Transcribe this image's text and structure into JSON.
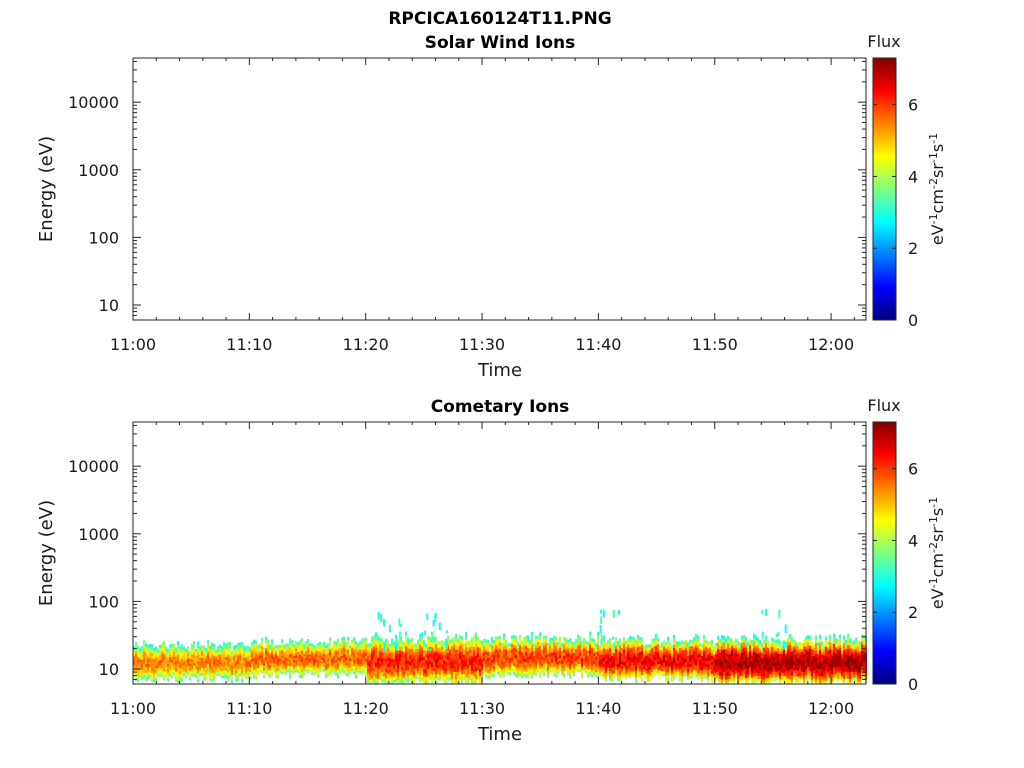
{
  "figure": {
    "title": "RPCICA160124T11.PNG"
  },
  "chart_data": [
    {
      "type": "heatmap",
      "title": "Solar Wind Ions",
      "xlabel": "Time",
      "ylabel": "Energy (eV)",
      "x_ticks": [
        "11:00",
        "11:10",
        "11:20",
        "11:30",
        "11:40",
        "11:50",
        "12:00"
      ],
      "xlim": [
        "11:00",
        "12:03"
      ],
      "y_ticks": [
        "10",
        "100",
        "1000",
        "10000"
      ],
      "ylim": [
        6,
        45000
      ],
      "y_scale": "log",
      "colorbar": {
        "title": "Flux",
        "label": "eV⁻¹cm⁻²sr⁻¹s⁻¹",
        "ticks": [
          "0",
          "2",
          "4",
          "6"
        ],
        "range": [
          0,
          7.3
        ],
        "colormap": "jet"
      },
      "bands": []
    },
    {
      "type": "heatmap",
      "title": "Cometary Ions",
      "xlabel": "Time",
      "ylabel": "Energy (eV)",
      "x_ticks": [
        "11:00",
        "11:10",
        "11:20",
        "11:30",
        "11:40",
        "11:50",
        "12:00"
      ],
      "xlim": [
        "11:00",
        "12:03"
      ],
      "y_ticks": [
        "10",
        "100",
        "1000",
        "10000"
      ],
      "ylim": [
        6,
        45000
      ],
      "y_scale": "log",
      "colorbar": {
        "title": "Flux",
        "label": "eV⁻¹cm⁻²sr⁻¹s⁻¹",
        "ticks": [
          "0",
          "2",
          "4",
          "6"
        ],
        "range": [
          0,
          7.3
        ],
        "colormap": "jet"
      },
      "bands": [
        {
          "t_start": "11:00",
          "t_end": "11:10",
          "e_low": 7,
          "e_high": 25,
          "peak_flux": 5.5
        },
        {
          "t_start": "11:10",
          "t_end": "11:20",
          "e_low": 8,
          "e_high": 28,
          "peak_flux": 5.7
        },
        {
          "t_start": "11:20",
          "t_end": "11:30",
          "e_low": 6,
          "e_high": 30,
          "peak_flux": 6.2
        },
        {
          "t_start": "11:30",
          "t_end": "11:40",
          "e_low": 8,
          "e_high": 30,
          "peak_flux": 6.0
        },
        {
          "t_start": "11:40",
          "t_end": "11:50",
          "e_low": 7,
          "e_high": 28,
          "peak_flux": 6.5
        },
        {
          "t_start": "11:50",
          "t_end": "12:03",
          "e_low": 6,
          "e_high": 28,
          "peak_flux": 7.0
        }
      ],
      "sparse_bursts": [
        {
          "t": "11:22",
          "e_low": 20,
          "e_high": 80,
          "flux": 3.0
        },
        {
          "t": "11:26",
          "e_low": 20,
          "e_high": 80,
          "flux": 3.0
        },
        {
          "t": "11:41",
          "e_low": 25,
          "e_high": 80,
          "flux": 3.0
        },
        {
          "t": "11:55",
          "e_low": 25,
          "e_high": 80,
          "flux": 3.0
        }
      ]
    }
  ]
}
